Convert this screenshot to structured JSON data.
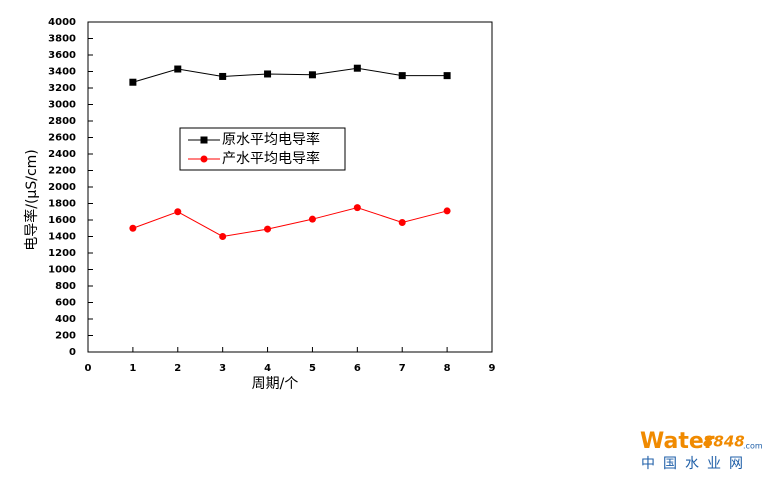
{
  "chart_data": {
    "type": "line",
    "x_label": "周期/个",
    "y_label": "电导率/(μS/cm)",
    "x": [
      1,
      2,
      3,
      4,
      5,
      6,
      7,
      8
    ],
    "series": [
      {
        "name": "原水平均电导率",
        "color": "#000000",
        "marker": "square",
        "values": [
          3270,
          3430,
          3340,
          3370,
          3360,
          3440,
          3350,
          3350
        ]
      },
      {
        "name": "产水平均电导率",
        "color": "#ff0000",
        "marker": "circle",
        "values": [
          1500,
          1700,
          1400,
          1490,
          1610,
          1750,
          1570,
          1710
        ]
      }
    ],
    "xlim": [
      0,
      9
    ],
    "xticks": [
      0,
      1,
      2,
      3,
      4,
      5,
      6,
      7,
      8,
      9
    ],
    "ylim": [
      0,
      4000
    ],
    "yticks": [
      0,
      200,
      400,
      600,
      800,
      1000,
      1200,
      1400,
      1600,
      1800,
      2000,
      2200,
      2400,
      2600,
      2800,
      3000,
      3200,
      3400,
      3600,
      3800,
      4000
    ],
    "grid": false
  },
  "watermark": {
    "brand": "Water",
    "number": "8848",
    "domain": ".com",
    "site": "中国水业网"
  }
}
